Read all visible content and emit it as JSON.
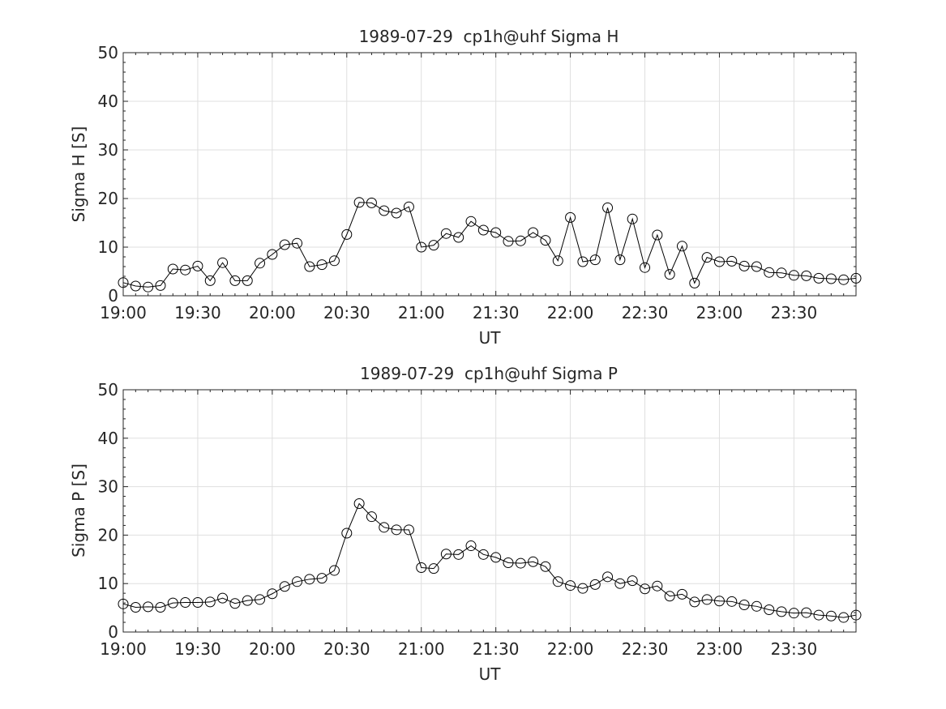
{
  "chart_data": [
    {
      "type": "line",
      "title": "1989-07-29  cp1h@uhf Sigma H",
      "xlabel": "UT",
      "ylabel": "Sigma H [S]",
      "xlim": [
        "19:00",
        "23:55"
      ],
      "ylim": [
        0,
        50
      ],
      "grid": true,
      "marker": "open-circle",
      "color": "#000000",
      "xticks": [
        "19:00",
        "19:30",
        "20:00",
        "20:30",
        "21:00",
        "21:30",
        "22:00",
        "22:30",
        "23:00",
        "23:30"
      ],
      "yticks": [
        "0",
        "10",
        "20",
        "30",
        "40",
        "50"
      ],
      "x": [
        "19:00",
        "19:05",
        "19:10",
        "19:15",
        "19:20",
        "19:25",
        "19:30",
        "19:35",
        "19:40",
        "19:45",
        "19:50",
        "19:55",
        "20:00",
        "20:05",
        "20:10",
        "20:15",
        "20:20",
        "20:25",
        "20:30",
        "20:35",
        "20:40",
        "20:45",
        "20:50",
        "20:55",
        "21:00",
        "21:05",
        "21:10",
        "21:15",
        "21:20",
        "21:25",
        "21:30",
        "21:35",
        "21:40",
        "21:45",
        "21:50",
        "21:55",
        "22:00",
        "22:05",
        "22:10",
        "22:15",
        "22:20",
        "22:25",
        "22:30",
        "22:35",
        "22:40",
        "22:45",
        "22:50",
        "22:55",
        "23:00",
        "23:05",
        "23:10",
        "23:15",
        "23:20",
        "23:25",
        "23:30",
        "23:35",
        "23:40",
        "23:45",
        "23:50",
        "23:55"
      ],
      "y": [
        2.7,
        2.0,
        1.8,
        2.1,
        5.5,
        5.3,
        6.1,
        3.1,
        6.8,
        3.1,
        3.1,
        6.7,
        8.5,
        10.5,
        10.8,
        6.0,
        6.4,
        7.2,
        12.6,
        19.2,
        19.1,
        17.5,
        17.0,
        18.3,
        10.0,
        10.4,
        12.8,
        12.0,
        15.3,
        13.5,
        13.0,
        11.2,
        11.3,
        13.0,
        11.4,
        7.2,
        16.1,
        7.0,
        7.4,
        18.1,
        7.4,
        15.8,
        5.8,
        12.5,
        4.4,
        10.2,
        2.6,
        7.9,
        7.0,
        7.1,
        6.1,
        6.0,
        4.8,
        4.7,
        4.2,
        4.1,
        3.6,
        3.5,
        3.3,
        3.6
      ]
    },
    {
      "type": "line",
      "title": "1989-07-29  cp1h@uhf Sigma P",
      "xlabel": "UT",
      "ylabel": "Sigma P [S]",
      "xlim": [
        "19:00",
        "23:55"
      ],
      "ylim": [
        0,
        50
      ],
      "grid": true,
      "marker": "open-circle",
      "color": "#000000",
      "xticks": [
        "19:00",
        "19:30",
        "20:00",
        "20:30",
        "21:00",
        "21:30",
        "22:00",
        "22:30",
        "23:00",
        "23:30"
      ],
      "yticks": [
        "0",
        "10",
        "20",
        "30",
        "40",
        "50"
      ],
      "x": [
        "19:00",
        "19:05",
        "19:10",
        "19:15",
        "19:20",
        "19:25",
        "19:30",
        "19:35",
        "19:40",
        "19:45",
        "19:50",
        "19:55",
        "20:00",
        "20:05",
        "20:10",
        "20:15",
        "20:20",
        "20:25",
        "20:30",
        "20:35",
        "20:40",
        "20:45",
        "20:50",
        "20:55",
        "21:00",
        "21:05",
        "21:10",
        "21:15",
        "21:20",
        "21:25",
        "21:30",
        "21:35",
        "21:40",
        "21:45",
        "21:50",
        "21:55",
        "22:00",
        "22:05",
        "22:10",
        "22:15",
        "22:20",
        "22:25",
        "22:30",
        "22:35",
        "22:40",
        "22:45",
        "22:50",
        "22:55",
        "23:00",
        "23:05",
        "23:10",
        "23:15",
        "23:20",
        "23:25",
        "23:30",
        "23:35",
        "23:40",
        "23:45",
        "23:50",
        "23:55"
      ],
      "y": [
        5.8,
        5.1,
        5.2,
        5.1,
        6.0,
        6.1,
        6.1,
        6.2,
        7.0,
        5.9,
        6.5,
        6.7,
        7.9,
        9.4,
        10.4,
        10.9,
        11.1,
        12.7,
        20.4,
        26.5,
        23.8,
        21.6,
        21.1,
        21.1,
        13.3,
        13.1,
        16.1,
        16.0,
        17.8,
        16.0,
        15.4,
        14.3,
        14.2,
        14.5,
        13.5,
        10.4,
        9.6,
        9.0,
        9.8,
        11.4,
        10.0,
        10.6,
        8.9,
        9.5,
        7.4,
        7.8,
        6.2,
        6.7,
        6.4,
        6.3,
        5.6,
        5.3,
        4.6,
        4.2,
        3.9,
        4.0,
        3.5,
        3.3,
        3.0,
        3.5
      ]
    }
  ]
}
